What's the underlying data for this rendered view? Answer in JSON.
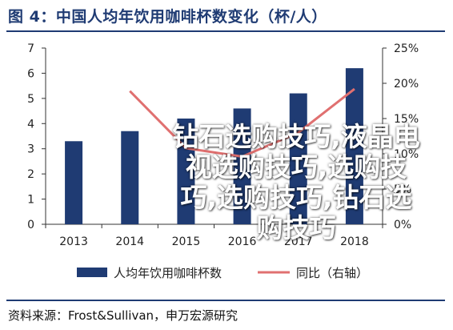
{
  "title": "图 4：中国人均年饮用咖啡杯数变化（杯/人）",
  "watermark": "钻石选购技巧,液晶电视选购技巧,选购技巧,选购技巧,钻石选购技巧",
  "source": "资料来源：Frost&Sullivan，申万宏源研究",
  "colors": {
    "bar": "#1f3b73",
    "line": "#e07070",
    "title": "#1f3b73"
  },
  "chart_data": {
    "type": "bar",
    "categories": [
      "2013",
      "2014",
      "2015",
      "2016",
      "2017",
      "2018"
    ],
    "series": [
      {
        "name": "人均年饮用咖啡杯数",
        "type": "bar",
        "axis": "left",
        "values": [
          3.3,
          3.7,
          4.2,
          4.6,
          5.2,
          6.2
        ]
      },
      {
        "name": "同比（右轴）",
        "type": "line",
        "axis": "right",
        "values": [
          null,
          18.9,
          10.8,
          9.6,
          13.0,
          19.2
        ]
      }
    ],
    "y_left": {
      "min": 0,
      "max": 7,
      "ticks": [
        "0",
        "1",
        "2",
        "3",
        "4",
        "5",
        "6",
        "7"
      ]
    },
    "y_right": {
      "min": 0,
      "max": 25,
      "ticks": [
        "0%",
        "5%",
        "10%",
        "15%",
        "20%",
        "25%"
      ]
    },
    "legend": {
      "placement": "bottom"
    },
    "grid": false
  }
}
